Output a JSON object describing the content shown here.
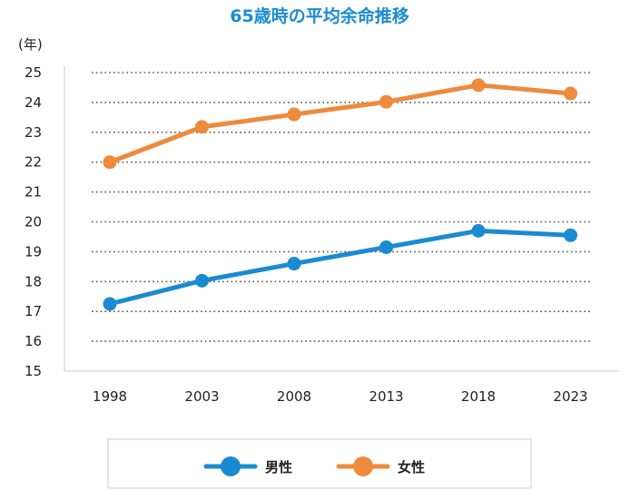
{
  "chart_data": {
    "type": "line",
    "title": "65歳時の平均余命推移",
    "ylabel": "(年)",
    "xlabel": "",
    "categories": [
      "1998",
      "2003",
      "2008",
      "2013",
      "2018",
      "2023"
    ],
    "ylim": [
      15,
      25
    ],
    "yticks": [
      "15",
      "16",
      "17",
      "18",
      "19",
      "20",
      "21",
      "22",
      "23",
      "24",
      "25"
    ],
    "grid": true,
    "legend_position": "bottom",
    "series": [
      {
        "name": "男性",
        "color": "#1a8bd1",
        "values": [
          17.25,
          18.03,
          18.6,
          19.15,
          19.7,
          19.55
        ]
      },
      {
        "name": "女性",
        "color": "#ee8a3c",
        "values": [
          22.0,
          23.18,
          23.6,
          24.02,
          24.58,
          24.3
        ]
      }
    ],
    "colors": {
      "title": "#1a8bd1",
      "grid": "#555555",
      "axis": "#cccccc",
      "legend_border": "#cccccc"
    }
  }
}
